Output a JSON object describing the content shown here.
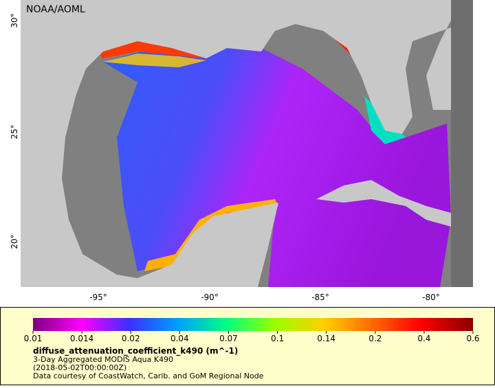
{
  "map": {
    "credit": "NOAA/AOML",
    "lat_labels": [
      "30°",
      "25°",
      "20°"
    ],
    "lon_labels": [
      "-95°",
      "-90°",
      "-85°",
      "-80°"
    ]
  },
  "legend": {
    "ticks": [
      "0.01",
      "0.014",
      "0.02",
      "0.04",
      "0.07",
      "0.1",
      "0.14",
      "0.2",
      "0.4",
      "0.6"
    ],
    "title": "diffuse_attenuation_coefficient_k490 (m^-1)",
    "lines": [
      "3-Day Aggregated MODIS Aqua K490",
      "(2018-05-02T00:00:00Z)",
      "Data courtesy of CoastWatch, Carib. and GoM Regional Node"
    ]
  }
}
